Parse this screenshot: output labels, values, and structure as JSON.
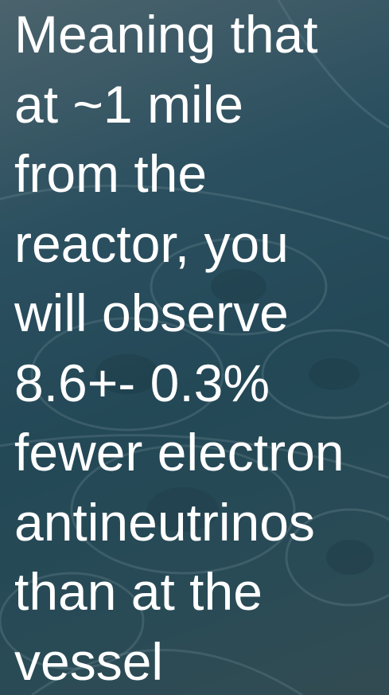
{
  "slide": {
    "lines": [
      "Meaning that",
      "at ~1 mile",
      "from the",
      "reactor, you",
      "will observe",
      "8.6+- 0.3%",
      "fewer electron",
      "antineutrinos",
      "than at the",
      "vessel"
    ]
  }
}
